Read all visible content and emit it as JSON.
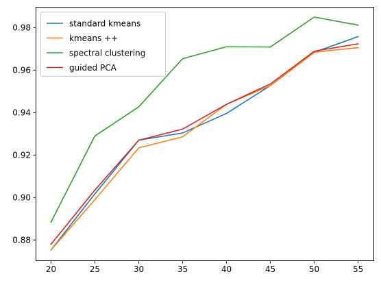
{
  "chart_data": {
    "type": "line",
    "title": "",
    "xlabel": "",
    "ylabel": "",
    "x": [
      20,
      25,
      30,
      35,
      40,
      45,
      50,
      55
    ],
    "xlim": [
      18.25,
      56.75
    ],
    "ylim": [
      0.8704,
      0.9898
    ],
    "x_ticks": [
      20,
      25,
      30,
      35,
      40,
      45,
      50,
      55
    ],
    "x_tick_labels": [
      "20",
      "25",
      "30",
      "35",
      "40",
      "45",
      "50",
      "55"
    ],
    "y_ticks": [
      0.88,
      0.9,
      0.92,
      0.94,
      0.96,
      0.98
    ],
    "y_tick_labels": [
      "0.88",
      "0.90",
      "0.92",
      "0.94",
      "0.96",
      "0.98"
    ],
    "grid": false,
    "legend_position": "upper-left",
    "series": [
      {
        "name": "standard kmeans",
        "color": "#1f77b4",
        "values": [
          0.8753,
          0.9017,
          0.927,
          0.9304,
          0.9396,
          0.9527,
          0.9684,
          0.9758
        ]
      },
      {
        "name": "kmeans ++",
        "color": "#ff7f0e",
        "values": [
          0.8753,
          0.899,
          0.9234,
          0.9286,
          0.9439,
          0.9527,
          0.9684,
          0.9706
        ]
      },
      {
        "name": "spectral clustering",
        "color": "#2ca02c",
        "values": [
          0.8884,
          0.929,
          0.9427,
          0.9654,
          0.971,
          0.9709,
          0.985,
          0.9812
        ]
      },
      {
        "name": "guided PCA",
        "color": "#d62728",
        "values": [
          0.878,
          0.9035,
          0.927,
          0.9322,
          0.9439,
          0.9535,
          0.9689,
          0.9724
        ]
      }
    ]
  }
}
